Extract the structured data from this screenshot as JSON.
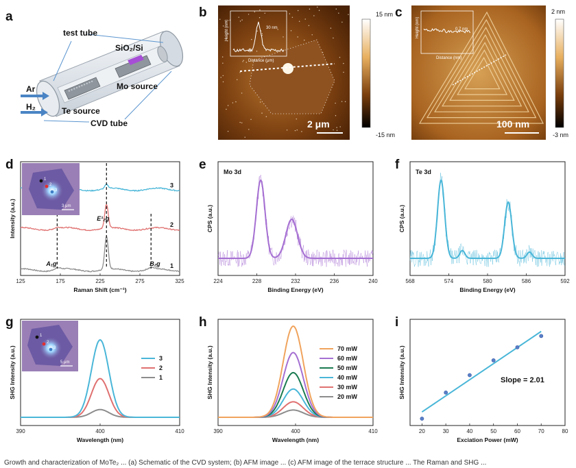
{
  "panel_labels": [
    "a",
    "b",
    "c",
    "d",
    "e",
    "f",
    "g",
    "h",
    "i"
  ],
  "schematic": {
    "test_tube": "test tube",
    "substrate": "SiO₂/Si",
    "ar": "Ar",
    "h2": "H₂",
    "te_source": "Te source",
    "mo_source": "Mo source",
    "cvd_tube": "CVD tube"
  },
  "afm_b": {
    "cb_max": "15 nm",
    "cb_min": "-15 nm",
    "scale": "2 μm",
    "inset_value": "30 nm",
    "inset_xlabel": "Distance (μm)",
    "inset_ylabel": "Height (nm)"
  },
  "afm_c": {
    "cb_max": "2 nm",
    "cb_min": "-3 nm",
    "scale": "100 nm",
    "inset_value": "0.7 nm",
    "inset_xlabel": "Distance (nm)",
    "inset_ylabel": "Height (nm)"
  },
  "caption_fragment": "Growth and characterization of MoTe₂ ... (a) Schematic of the CVD system; (b) AFM image ... (c) AFM image of the terrace structure ... The Raman and SHG ...",
  "chart_data": [
    {
      "panel": "d",
      "type": "line",
      "xlabel": "Raman Shift (cm⁻¹)",
      "ylabel": "Intensity (a.u.)",
      "xlim": [
        125,
        325
      ],
      "xticks": [
        125,
        175,
        225,
        275,
        325
      ],
      "peak_labels": [
        "A₁g",
        "E¹₂g",
        "B₂g"
      ],
      "peak_positions": [
        171,
        233,
        289
      ],
      "inset_scale": "3 μm",
      "inset_points": [
        "1",
        "2",
        "3"
      ],
      "series": [
        {
          "name": "1",
          "color": "#8c8c8c",
          "offset": 0.0,
          "peaks": [
            [
              233,
              1.0,
              2.2
            ],
            [
              171,
              0.06,
              4
            ],
            [
              289,
              0.05,
              4
            ]
          ]
        },
        {
          "name": "2",
          "color": "#e07070",
          "offset": 1.25,
          "peaks": [
            [
              233,
              0.72,
              2.2
            ],
            [
              171,
              0.04,
              4
            ]
          ]
        },
        {
          "name": "3",
          "color": "#49b6d8",
          "offset": 2.45,
          "peaks": [
            [
              233,
              0.12,
              2.2
            ]
          ]
        }
      ]
    },
    {
      "panel": "e",
      "type": "line",
      "title": "Mo 3d",
      "xlabel": "Binding Energy (eV)",
      "ylabel": "CPS (a.u.)",
      "xlim": [
        224,
        240
      ],
      "xticks": [
        224,
        228,
        232,
        236,
        240
      ],
      "color": "#a56fd2",
      "peaks": [
        [
          228.4,
          1.0,
          0.45
        ],
        [
          231.6,
          0.5,
          0.6
        ]
      ]
    },
    {
      "panel": "f",
      "type": "line",
      "title": "Te 3d",
      "xlabel": "Binding Energy (eV)",
      "ylabel": "CPS (a.u.)",
      "xlim": [
        568,
        592
      ],
      "xticks": [
        568,
        574,
        580,
        586,
        592
      ],
      "color": "#49b6d8",
      "peaks": [
        [
          572.8,
          1.0,
          0.55
        ],
        [
          576.1,
          0.1,
          0.4
        ],
        [
          583.2,
          0.72,
          0.55
        ],
        [
          586.5,
          0.08,
          0.4
        ]
      ]
    },
    {
      "panel": "g",
      "type": "line",
      "xlabel": "Wavelength (nm)",
      "ylabel": "SHG Intensity (a.u.)",
      "xlim": [
        390,
        410
      ],
      "xticks": [
        390,
        400,
        410
      ],
      "center": 400,
      "width": 1.1,
      "inset_scale": "5 μm",
      "inset_points": [
        "1",
        "2",
        "3"
      ],
      "series": [
        {
          "name": "3",
          "color": "#49b6d8",
          "amplitude": 1.0
        },
        {
          "name": "2",
          "color": "#e07070",
          "amplitude": 0.5
        },
        {
          "name": "1",
          "color": "#8c8c8c",
          "amplitude": 0.1
        }
      ]
    },
    {
      "panel": "h",
      "type": "line",
      "xlabel": "Wavelength (nm)",
      "ylabel": "SHG Intensity (a.u.)",
      "xlim": [
        390,
        410
      ],
      "xticks": [
        390,
        400,
        410
      ],
      "center": 399.7,
      "width": 1.3,
      "series": [
        {
          "name": "70 mW",
          "color": "#f0a35c",
          "amplitude": 1.0
        },
        {
          "name": "60 mW",
          "color": "#a56fd2",
          "amplitude": 0.71
        },
        {
          "name": "50 mW",
          "color": "#1a7a50",
          "amplitude": 0.49
        },
        {
          "name": "40 mW",
          "color": "#49b6d8",
          "amplitude": 0.31
        },
        {
          "name": "30 mW",
          "color": "#e07070",
          "amplitude": 0.17
        },
        {
          "name": "20 mW",
          "color": "#8c8c8c",
          "amplitude": 0.08
        }
      ]
    },
    {
      "panel": "i",
      "type": "scatter",
      "xlabel": "Exciation Power (mW)",
      "ylabel": "SHG Intensity (a.u.)",
      "xlim": [
        15,
        80
      ],
      "xticks": [
        20,
        30,
        40,
        50,
        60,
        70,
        80
      ],
      "annotation": "Slope = 2.01",
      "color": "#49b6d8",
      "x": [
        20,
        30,
        40,
        50,
        60,
        70
      ],
      "y": [
        0.0,
        0.3,
        0.5,
        0.67,
        0.82,
        0.95
      ]
    }
  ]
}
